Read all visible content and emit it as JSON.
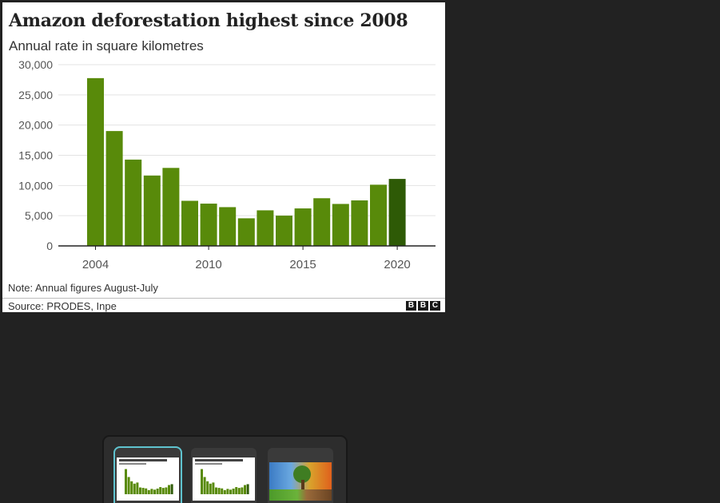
{
  "colors": {
    "bar": "#588a0a",
    "bar_highlight": "#2e5a06",
    "grid": "#e3e3e3",
    "axis": "#222222",
    "text": "#555555"
  },
  "chart_data": {
    "type": "bar",
    "title": "Amazon deforestation highest since 2008",
    "subtitle": "Annual rate in square kilometres",
    "xlabel": "",
    "ylabel": "",
    "categories": [
      "2004",
      "2005",
      "2006",
      "2007",
      "2008",
      "2009",
      "2010",
      "2011",
      "2012",
      "2013",
      "2014",
      "2015",
      "2016",
      "2017",
      "2018",
      "2019",
      "2020"
    ],
    "values": [
      27772,
      19014,
      14286,
      11651,
      12911,
      7464,
      7000,
      6418,
      4571,
      5891,
      5012,
      6207,
      7893,
      6947,
      7536,
      10129,
      11088
    ],
    "highlight_index": 16,
    "ylim": [
      0,
      30000
    ],
    "yticks": [
      0,
      5000,
      10000,
      15000,
      20000,
      25000,
      30000
    ],
    "ytick_labels": [
      "0",
      "5,000",
      "10,000",
      "15,000",
      "20,000",
      "25,000",
      "30,000"
    ],
    "xticks": [
      "2004",
      "2010",
      "2015",
      "2020"
    ],
    "grid": true,
    "legend": "none",
    "note": "Note: Annual figures August-July",
    "source": "Source: PRODES, Inpe"
  },
  "branding": {
    "logo_letters": [
      "B",
      "B",
      "C"
    ]
  },
  "filmstrip": {
    "items": [
      {
        "kind": "chart",
        "selected": true
      },
      {
        "kind": "chart",
        "selected": false
      },
      {
        "kind": "photo",
        "selected": false
      }
    ]
  }
}
